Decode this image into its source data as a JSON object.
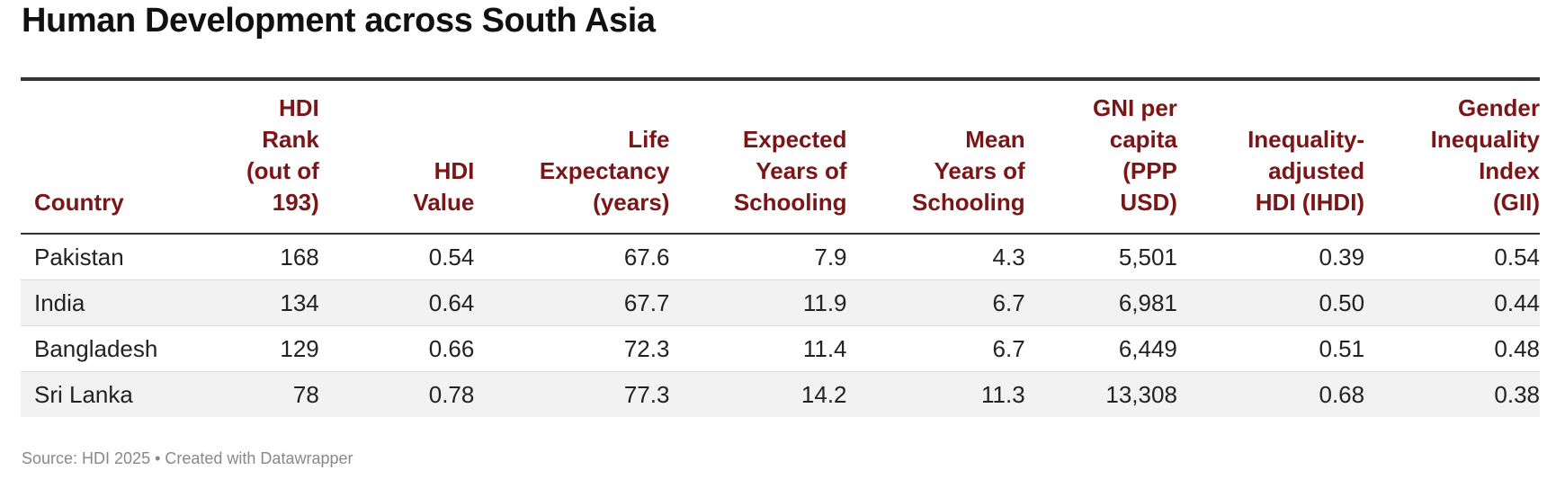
{
  "title": "Human Development across South Asia",
  "source": "Source: HDI 2025 • Created with Datawrapper",
  "colors": {
    "header_text": "#7a1518",
    "rule": "#333333",
    "stripe": "#f2f2f2",
    "source_text": "#888888"
  },
  "chart_data": {
    "type": "table",
    "title": "Human Development across South Asia",
    "columns": [
      "Country",
      "HDI\nRank\n(out of\n193)",
      "HDI\nValue",
      "Life\nExpectancy\n(years)",
      "Expected\nYears of\nSchooling",
      "Mean\nYears of\nSchooling",
      "GNI per\ncapita\n(PPP\nUSD)",
      "Inequality-\nadjusted\nHDI (IHDI)",
      "Gender\nInequality\nIndex\n(GII)"
    ],
    "rows": [
      [
        "Pakistan",
        "168",
        "0.54",
        "67.6",
        "7.9",
        "4.3",
        "5,501",
        "0.39",
        "0.54"
      ],
      [
        "India",
        "134",
        "0.64",
        "67.7",
        "11.9",
        "6.7",
        "6,981",
        "0.50",
        "0.44"
      ],
      [
        "Bangladesh",
        "129",
        "0.66",
        "72.3",
        "11.4",
        "6.7",
        "6,449",
        "0.51",
        "0.48"
      ],
      [
        "Sri Lanka",
        "78",
        "0.78",
        "77.3",
        "14.2",
        "11.3",
        "13,308",
        "0.68",
        "0.38"
      ]
    ]
  }
}
